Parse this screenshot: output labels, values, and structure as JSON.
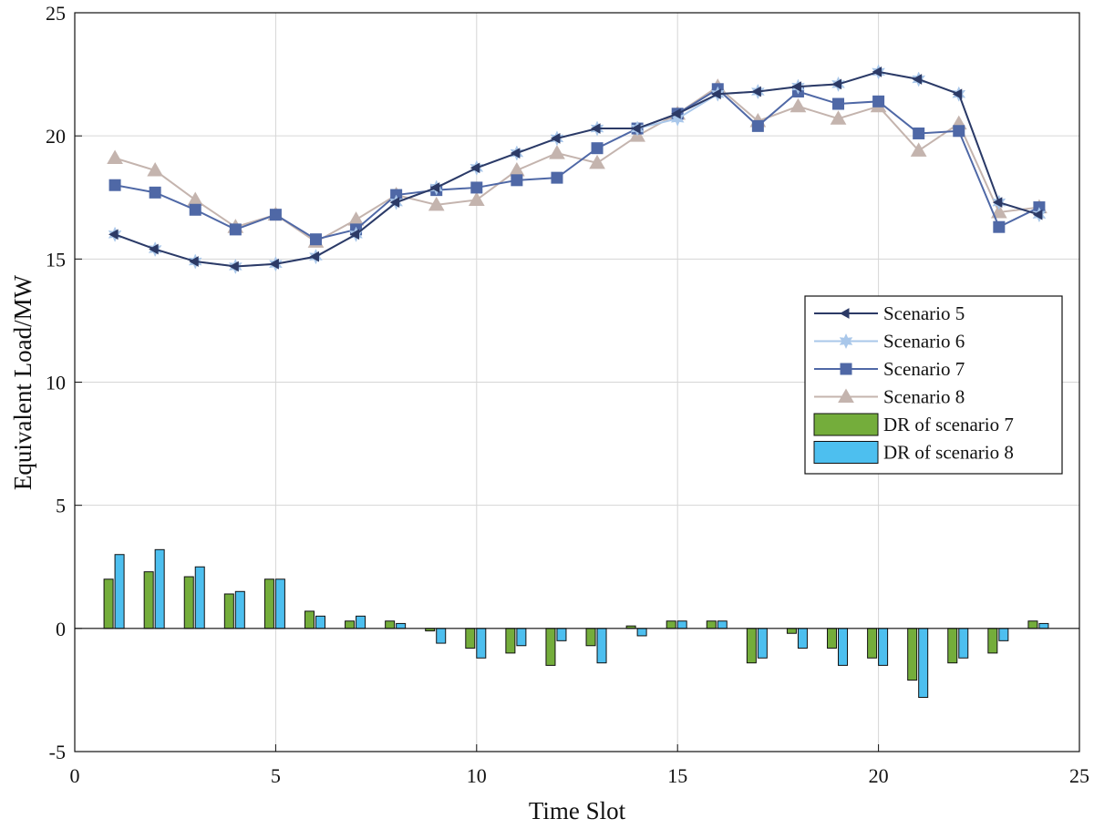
{
  "chart_data": {
    "type": "line+bar",
    "title": "",
    "xlabel": "Time Slot",
    "ylabel": "Equivalent Load/MW",
    "xlim": [
      0,
      25
    ],
    "ylim": [
      -5,
      25
    ],
    "xticks": [
      0,
      5,
      10,
      15,
      20,
      25
    ],
    "yticks": [
      -5,
      0,
      5,
      10,
      15,
      20,
      25
    ],
    "grid": true,
    "legend_position": "right",
    "x": [
      1,
      2,
      3,
      4,
      5,
      6,
      7,
      8,
      9,
      10,
      11,
      12,
      13,
      14,
      15,
      16,
      17,
      18,
      19,
      20,
      21,
      22,
      23,
      24
    ],
    "series": [
      {
        "name": "Scenario 5",
        "kind": "line",
        "marker": "triangle-left",
        "color": "#2c3a66",
        "values": [
          16.0,
          15.4,
          14.9,
          14.7,
          14.8,
          15.1,
          16.0,
          17.3,
          17.9,
          18.7,
          19.3,
          19.9,
          20.3,
          20.3,
          20.9,
          21.7,
          21.8,
          22.0,
          22.1,
          22.6,
          22.3,
          21.7,
          17.3,
          16.8
        ]
      },
      {
        "name": "Scenario 6",
        "kind": "line",
        "marker": "star",
        "color": "#a9c7ea",
        "values": [
          16.0,
          15.4,
          14.9,
          14.7,
          14.8,
          15.1,
          16.0,
          17.3,
          17.9,
          18.7,
          19.3,
          19.9,
          20.3,
          20.3,
          20.7,
          21.7,
          21.8,
          22.0,
          22.1,
          22.6,
          22.3,
          21.7,
          17.3,
          16.8
        ]
      },
      {
        "name": "Scenario 7",
        "kind": "line",
        "marker": "square",
        "color": "#4f68a6",
        "values": [
          18.0,
          17.7,
          17.0,
          16.2,
          16.8,
          15.8,
          16.2,
          17.6,
          17.8,
          17.9,
          18.2,
          18.3,
          19.5,
          20.3,
          20.9,
          21.9,
          20.4,
          21.8,
          21.3,
          21.4,
          20.1,
          20.2,
          16.3,
          17.1
        ]
      },
      {
        "name": "Scenario 8",
        "kind": "line",
        "marker": "triangle-up",
        "color": "#c4b4ae",
        "values": [
          19.1,
          18.6,
          17.4,
          16.3,
          16.8,
          15.7,
          16.6,
          17.6,
          17.2,
          17.4,
          18.6,
          19.3,
          18.9,
          20.0,
          20.9,
          22.0,
          20.6,
          21.2,
          20.7,
          21.2,
          19.4,
          20.5,
          16.9,
          17.1
        ]
      },
      {
        "name": "DR of scenario 7",
        "kind": "bar",
        "color": "#74ad3b",
        "values": [
          2.0,
          2.3,
          2.1,
          1.4,
          2.0,
          0.7,
          0.3,
          0.3,
          -0.1,
          -0.8,
          -1.0,
          -1.5,
          -0.7,
          0.1,
          0.3,
          0.3,
          -1.4,
          -0.2,
          -0.8,
          -1.2,
          -2.1,
          -1.4,
          -1.0,
          0.3
        ]
      },
      {
        "name": "DR of scenario 8",
        "kind": "bar",
        "color": "#4dbfef",
        "values": [
          3.0,
          3.2,
          2.5,
          1.5,
          2.0,
          0.5,
          0.5,
          0.2,
          -0.6,
          -1.2,
          -0.7,
          -0.5,
          -1.4,
          -0.3,
          0.3,
          0.3,
          -1.2,
          -0.8,
          -1.5,
          -1.5,
          -2.8,
          -1.2,
          -0.5,
          0.2
        ]
      }
    ]
  }
}
